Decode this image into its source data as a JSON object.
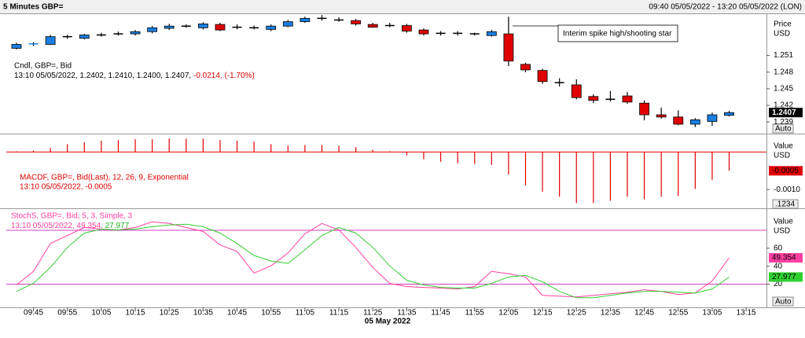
{
  "header": {
    "title": "5 Minutes GBP=",
    "range": "09:40 05/05/2022 - 13:20 05/05/2022 (LON)"
  },
  "x_axis": {
    "xlim": [
      "09:37",
      "13:21"
    ],
    "xticks": [
      "09:45",
      "09:55",
      "10:05",
      "10:15",
      "10:25",
      "10:35",
      "10:45",
      "10:55",
      "11:05",
      "11:15",
      "11:25",
      "11:35",
      "11:45",
      "11:55",
      "12:05",
      "12:15",
      "12:25",
      "12:35",
      "12:45",
      "12:55",
      "13:05",
      "13:15"
    ],
    "label": "05 May 2022"
  },
  "chart_data": [
    {
      "type": "candlestick",
      "legend_name": "Cndl, GBP=, Bid",
      "legend": "13:10 05/05/2022, 1.2402, 1.2410, 1.2400, 1.2407,",
      "change": "-0.0214, (-1.70%)",
      "axis_label": "Price",
      "axis_unit": "USD",
      "auto_button": "Auto",
      "annotation": "Interim spike high/shooting star",
      "up_color": "#1a7fe0",
      "down_color": "#e00000",
      "flat_color": "#000000",
      "categories": [
        "09:40",
        "09:45",
        "09:50",
        "09:55",
        "10:00",
        "10:05",
        "10:10",
        "10:15",
        "10:20",
        "10:25",
        "10:30",
        "10:35",
        "10:40",
        "10:45",
        "10:50",
        "10:55",
        "11:00",
        "11:05",
        "11:10",
        "11:15",
        "11:20",
        "11:25",
        "11:30",
        "11:35",
        "11:40",
        "11:45",
        "11:50",
        "11:55",
        "12:00",
        "12:05",
        "12:10",
        "12:15",
        "12:20",
        "12:25",
        "12:30",
        "12:35",
        "12:40",
        "12:45",
        "12:50",
        "12:55",
        "13:00",
        "13:05",
        "13:10"
      ],
      "open": [
        1.2523,
        1.2529,
        1.253,
        1.2544,
        1.2541,
        1.2547,
        1.2549,
        1.2549,
        1.2553,
        1.2559,
        1.2563,
        1.256,
        1.2566,
        1.2561,
        1.256,
        1.2557,
        1.2563,
        1.2571,
        1.2577,
        1.2574,
        1.2573,
        1.2566,
        1.2564,
        1.2564,
        1.2556,
        1.255,
        1.255,
        1.2549,
        1.2546,
        1.2549,
        1.2494,
        1.2483,
        1.2461,
        1.2457,
        1.2436,
        1.2431,
        1.2437,
        1.2424,
        1.2403,
        1.2399,
        1.2386,
        1.2391,
        1.2402
      ],
      "high": [
        1.2533,
        1.2534,
        1.2547,
        1.2547,
        1.2549,
        1.2551,
        1.2553,
        1.2556,
        1.2563,
        1.2567,
        1.2566,
        1.257,
        1.2569,
        1.2566,
        1.2564,
        1.2566,
        1.2574,
        1.258,
        1.2583,
        1.2579,
        1.2576,
        1.2569,
        1.2569,
        1.2567,
        1.2559,
        1.2554,
        1.2554,
        1.2551,
        1.2556,
        1.258,
        1.2497,
        1.2486,
        1.2469,
        1.2467,
        1.244,
        1.2446,
        1.2444,
        1.2429,
        1.2416,
        1.2411,
        1.2397,
        1.2407,
        1.241
      ],
      "low": [
        1.2521,
        1.2527,
        1.2529,
        1.254,
        1.2539,
        1.2544,
        1.2546,
        1.2546,
        1.255,
        1.2556,
        1.256,
        1.2557,
        1.2554,
        1.2557,
        1.2557,
        1.2554,
        1.2561,
        1.2569,
        1.2573,
        1.2571,
        1.2564,
        1.256,
        1.2561,
        1.2551,
        1.2546,
        1.2546,
        1.2546,
        1.2546,
        1.2544,
        1.2491,
        1.248,
        1.2459,
        1.2454,
        1.2431,
        1.2424,
        1.2427,
        1.2423,
        1.2393,
        1.2396,
        1.2384,
        1.2381,
        1.2383,
        1.24
      ],
      "close": [
        1.253,
        1.2531,
        1.2544,
        1.2544,
        1.2547,
        1.2547,
        1.2549,
        1.2553,
        1.256,
        1.2563,
        1.2563,
        1.2567,
        1.2556,
        1.2561,
        1.256,
        1.2563,
        1.2571,
        1.2577,
        1.2577,
        1.2574,
        1.2567,
        1.2561,
        1.2564,
        1.2554,
        1.2549,
        1.255,
        1.255,
        1.2549,
        1.2553,
        1.25,
        1.2484,
        1.2463,
        1.2461,
        1.2434,
        1.2429,
        1.2431,
        1.2426,
        1.2403,
        1.2399,
        1.2386,
        1.2394,
        1.2403,
        1.2407
      ],
      "ylim": [
        1.2369,
        1.2586
      ],
      "yticks": [
        1.251,
        1.248,
        1.245,
        1.242,
        1.239
      ]
    },
    {
      "type": "histogram_line",
      "legend_name": "MACDF, GBP=, Bid(Last),  12, 26, 9, Exponential",
      "legend": "13:10 05/05/2022, -0.0005",
      "axis_label": "Value",
      "axis_unit": "USD",
      "format_button": ".1234",
      "color": "#e00000",
      "values": [
        2e-05,
        4e-05,
        0.00011,
        0.00021,
        0.00026,
        0.0003,
        0.00032,
        0.00034,
        0.00034,
        0.00036,
        0.00036,
        0.00036,
        0.00032,
        0.0003,
        0.00028,
        0.00021,
        0.00017,
        0.00019,
        0.00019,
        0.00017,
        0.00013,
        6e-05,
        2e-05,
        -9e-05,
        -0.00019,
        -0.00026,
        -0.0003,
        -0.00032,
        -0.00034,
        -0.0006,
        -0.00089,
        -0.00106,
        -0.00119,
        -0.00136,
        -0.00136,
        -0.0013,
        -0.00119,
        -0.00126,
        -0.00119,
        -0.00117,
        -0.00098,
        -0.00074,
        -0.0005
      ],
      "ylim": [
        -0.0015,
        0.00047
      ],
      "yticks": [
        {
          "value": -0.001,
          "label": "-0.0010"
        }
      ]
    },
    {
      "type": "line",
      "legend_name": "StochS, GBP=, Bid,  5, 3, Simple, 3",
      "legend_time": "13:10 05/05/2022,",
      "legend_separator": ",",
      "axis_label": "Value",
      "axis_unit": "USD",
      "auto_button": "Auto",
      "level_color": "#d040c0",
      "levels": [
        80,
        20
      ],
      "series": [
        {
          "name": "%K",
          "color": "#ff3fa0",
          "values": [
            19.1,
            34.2,
            65.3,
            74.2,
            83.1,
            81.3,
            80.4,
            83.1,
            89.3,
            87.6,
            83.1,
            78.7,
            63.6,
            56.4,
            32.4,
            40.4,
            54.7,
            76,
            87.6,
            80.4,
            60.9,
            38.7,
            20.9,
            17.3,
            16.4,
            15.6,
            14.7,
            17.3,
            34.2,
            31.6,
            28,
            7.6,
            6.7,
            5.8,
            7.6,
            9.3,
            11.1,
            13.8,
            12,
            8.4,
            10.2,
            23.6,
            49.354
          ]
        },
        {
          "name": "%D",
          "color": "#30d030",
          "values": [
            12,
            20.9,
            38.7,
            60.9,
            76.9,
            81.3,
            80.4,
            81.3,
            84,
            85.8,
            86.7,
            84,
            76.9,
            65.3,
            52,
            45.8,
            43.1,
            58.2,
            74.2,
            83.1,
            76.9,
            60.9,
            40.4,
            24.4,
            19.1,
            16.4,
            15.6,
            15.6,
            20.9,
            28,
            29.8,
            22.7,
            12,
            4.9,
            4.9,
            7.6,
            10.2,
            12,
            12,
            11.1,
            10.2,
            14.7,
            27.977
          ]
        }
      ],
      "ylim": [
        -5.8,
        103.6
      ],
      "yticks": [
        20,
        40,
        60
      ]
    }
  ]
}
